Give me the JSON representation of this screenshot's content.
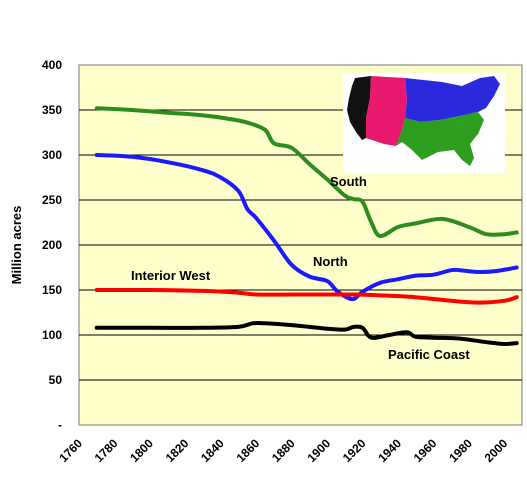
{
  "chart_data": {
    "type": "line",
    "title": "",
    "xlabel": "",
    "ylabel": "Million acres",
    "xlim": [
      1760,
      2010
    ],
    "ylim": [
      0,
      400
    ],
    "x_ticks": [
      "1760",
      "1780",
      "1800",
      "1820",
      "1840",
      "1860",
      "1880",
      "1900",
      "1920",
      "1940",
      "1960",
      "1980",
      "2000"
    ],
    "y_ticks": [
      "-",
      "50",
      "100",
      "150",
      "200",
      "250",
      "300",
      "350",
      "400"
    ],
    "grid": "horizontal",
    "background": "#ffffcc",
    "series": [
      {
        "name": "South",
        "color": "#2e8b1e",
        "x": [
          1770,
          1790,
          1810,
          1830,
          1845,
          1855,
          1865,
          1870,
          1880,
          1890,
          1900,
          1910,
          1915,
          1920,
          1925,
          1930,
          1940,
          1950,
          1965,
          1980,
          1990,
          2000,
          2007
        ],
        "y": [
          352,
          350,
          347,
          344,
          340,
          336,
          328,
          313,
          308,
          290,
          273,
          255,
          251,
          248,
          225,
          210,
          220,
          224,
          229,
          220,
          212,
          212,
          214
        ]
      },
      {
        "name": "North",
        "color": "#1a1aff",
        "x": [
          1770,
          1790,
          1810,
          1830,
          1840,
          1850,
          1855,
          1860,
          1870,
          1880,
          1890,
          1900,
          1905,
          1910,
          1915,
          1920,
          1930,
          1940,
          1950,
          1960,
          1970,
          1975,
          1985,
          1995,
          2007
        ],
        "y": [
          300,
          298,
          292,
          283,
          275,
          260,
          240,
          230,
          205,
          178,
          165,
          160,
          150,
          143,
          140,
          148,
          158,
          162,
          166,
          167,
          172,
          172,
          170,
          171,
          175
        ]
      },
      {
        "name": "Interior West",
        "color": "#ff0000",
        "x": [
          1770,
          1800,
          1830,
          1850,
          1860,
          1880,
          1900,
          1915,
          1930,
          1950,
          1970,
          1985,
          2000,
          2007
        ],
        "y": [
          150,
          150,
          149,
          147,
          145,
          145,
          145,
          145,
          144,
          142,
          138,
          136,
          138,
          142
        ]
      },
      {
        "name": "Pacific Coast",
        "color": "#000000",
        "x": [
          1770,
          1800,
          1830,
          1850,
          1858,
          1865,
          1880,
          1900,
          1910,
          1915,
          1920,
          1925,
          1935,
          1945,
          1950,
          1960,
          1975,
          1990,
          2000,
          2007
        ],
        "y": [
          108,
          108,
          108,
          109,
          113,
          113,
          111,
          107,
          106,
          109,
          108,
          97,
          100,
          103,
          98,
          97,
          96,
          92,
          90,
          91
        ]
      }
    ]
  }
}
